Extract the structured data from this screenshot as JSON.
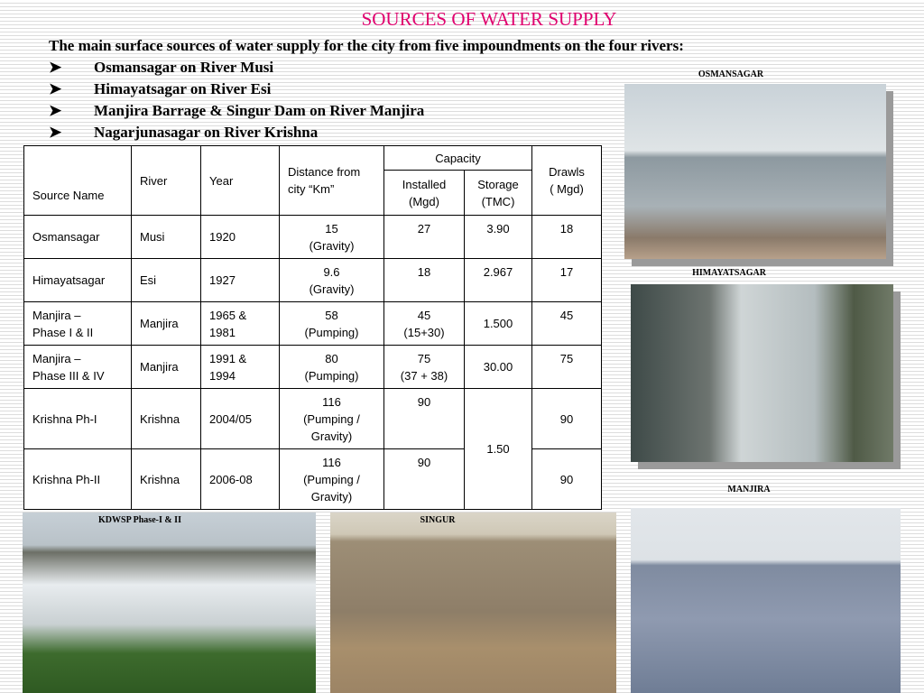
{
  "header": {
    "title": "SOURCES OF WATER SUPPLY"
  },
  "intro": "The main surface sources of water supply for the city from five impoundments on the four rivers:",
  "bullets": [
    "Osmansagar on River Musi",
    "Himayatsagar on River Esi",
    "Manjira Barrage & Singur Dam on River Manjira",
    "Nagarjunasagar on River Krishna"
  ],
  "table": {
    "header": {
      "source": "Source Name",
      "river": "River",
      "year": "Year",
      "distance": "Distance   from city “Km”",
      "capacity": "Capacity",
      "installed": "Installed\n(Mgd)",
      "storage": "Storage\n(TMC)",
      "drawls": "Drawls\n( Mgd)"
    },
    "rows": [
      [
        "Osmansagar",
        "Musi",
        "1920",
        "15\n(Gravity)",
        "27",
        "3.90",
        "18"
      ],
      [
        "Himayatsagar",
        "Esi",
        "1927",
        "9.6\n(Gravity)",
        "18",
        "2.967",
        "17"
      ],
      [
        "Manjira –\nPhase I & II",
        "Manjira",
        "1965 &\n1981",
        "58\n(Pumping)",
        "45\n(15+30)",
        "1.500",
        "45"
      ],
      [
        "Manjira –\nPhase III & IV",
        "Manjira",
        "1991 &\n1994",
        "80\n(Pumping)",
        "75\n(37 + 38)",
        "30.00",
        "75"
      ],
      [
        "Krishna Ph-I",
        "Krishna",
        "2004/05",
        "116\n(Pumping /\nGravity)",
        "90",
        "1.50",
        "90"
      ],
      [
        "Krishna Ph-II",
        "Krishna",
        "2006-08",
        "116\n(Pumping /\nGravity)",
        "90",
        "90"
      ]
    ]
  },
  "photos": {
    "osmansagar": "OSMANSAGAR",
    "himayatsagar": "HIMAYATSAGAR",
    "manjira": "MANJIRA",
    "kdwsp": "KDWSP Phase-I & II",
    "singur": "SINGUR"
  }
}
